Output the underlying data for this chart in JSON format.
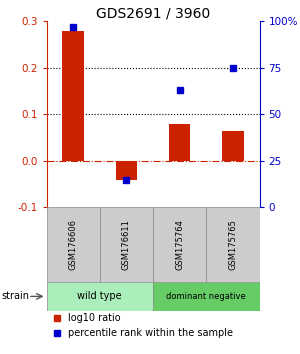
{
  "title": "GDS2691 / 3960",
  "samples": [
    "GSM176606",
    "GSM176611",
    "GSM175764",
    "GSM175765"
  ],
  "log10_ratio": [
    0.28,
    -0.04,
    0.08,
    0.065
  ],
  "percentile_rank": [
    97,
    15,
    63,
    75
  ],
  "bar_color": "#cc2200",
  "dot_color": "#0000cc",
  "ylim_left": [
    -0.1,
    0.3
  ],
  "ylim_right": [
    0,
    100
  ],
  "yticks_left": [
    -0.1,
    0.0,
    0.1,
    0.2,
    0.3
  ],
  "yticks_right": [
    0,
    25,
    50,
    75,
    100
  ],
  "ytick_labels_right": [
    "0",
    "25",
    "50",
    "75",
    "100%"
  ],
  "groups": [
    {
      "label": "wild type",
      "samples": [
        0,
        1
      ],
      "color": "#aaeebb"
    },
    {
      "label": "dominant negative",
      "samples": [
        2,
        3
      ],
      "color": "#66cc66"
    }
  ],
  "strain_label": "strain",
  "legend_bar_label": "log10 ratio",
  "legend_dot_label": "percentile rank within the sample",
  "zero_line_color": "#cc2200",
  "background_color": "#ffffff"
}
